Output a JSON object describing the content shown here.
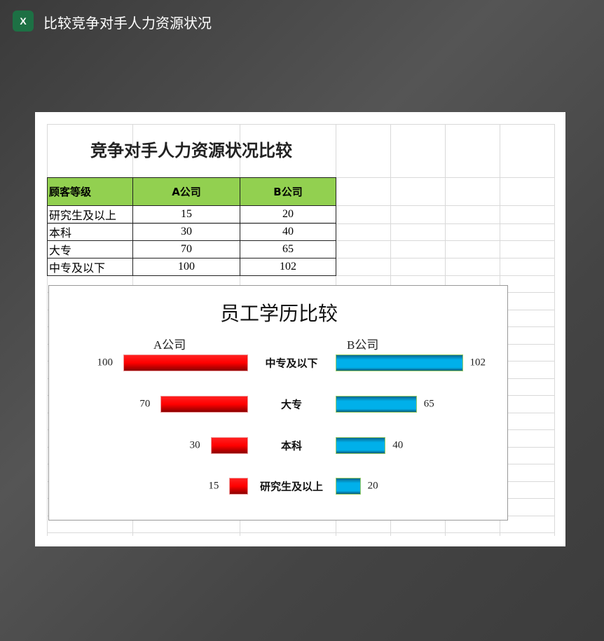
{
  "app": {
    "title": "比较竞争对手人力资源状况",
    "icon": "excel-icon",
    "icon_text": "X"
  },
  "sheet": {
    "title": "竞争对手人力资源状况比较",
    "headers": [
      "顾客等级",
      "A公司",
      "B公司"
    ],
    "rows": [
      [
        "研究生及以上",
        "15",
        "20"
      ],
      [
        "本科",
        "30",
        "40"
      ],
      [
        "大专",
        "70",
        "65"
      ],
      [
        "中专及以下",
        "100",
        "102"
      ]
    ]
  },
  "chart_data": {
    "type": "bar",
    "title": "员工学历比较",
    "categories": [
      "中专及以下",
      "大专",
      "本科",
      "研究生及以上"
    ],
    "series": [
      {
        "name": "A公司",
        "values": [
          100,
          70,
          30,
          15
        ],
        "color": "#ff0000"
      },
      {
        "name": "B公司",
        "values": [
          102,
          65,
          40,
          20
        ],
        "color": "#00b0f0"
      }
    ],
    "orientation": "horizontal-butterfly"
  }
}
